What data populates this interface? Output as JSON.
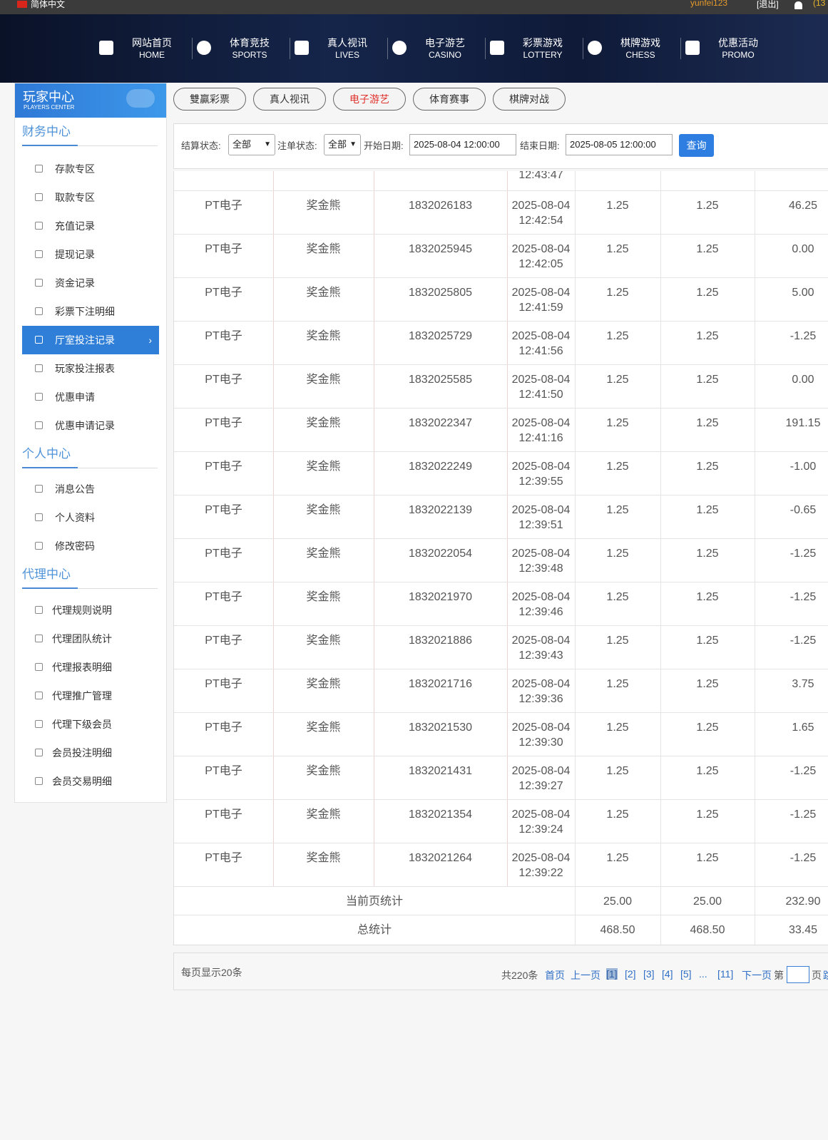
{
  "top_bar": {
    "language": "简体中文",
    "username": "yunfei123",
    "logout": "[退出]",
    "balance_partial": "(13"
  },
  "nav": [
    {
      "zh": "网站首页",
      "en": "HOME"
    },
    {
      "zh": "体育竞技",
      "en": "SPORTS"
    },
    {
      "zh": "真人视讯",
      "en": "LIVES"
    },
    {
      "zh": "电子游艺",
      "en": "CASINO"
    },
    {
      "zh": "彩票游戏",
      "en": "LOTTERY"
    },
    {
      "zh": "棋牌游戏",
      "en": "CHESS"
    },
    {
      "zh": "优惠活动",
      "en": "PROMO"
    }
  ],
  "sidebar": {
    "title": "玩家中心",
    "subtitle": "PLAYERS CENTER",
    "sections": [
      {
        "heading": "财务中心",
        "items": [
          {
            "label": "存款专区"
          },
          {
            "label": "取款专区"
          },
          {
            "label": "充值记录"
          },
          {
            "label": "提现记录"
          },
          {
            "label": "资金记录"
          },
          {
            "label": "彩票下注明细"
          },
          {
            "label": "厅室投注记录",
            "active": true
          },
          {
            "label": "玩家投注报表"
          },
          {
            "label": "优惠申请"
          },
          {
            "label": "优惠申请记录"
          }
        ]
      },
      {
        "heading": "个人中心",
        "items": [
          {
            "label": "消息公告"
          },
          {
            "label": "个人资料"
          },
          {
            "label": "修改密码"
          }
        ]
      },
      {
        "heading": "代理中心",
        "items": [
          {
            "label": "代理规则说明"
          },
          {
            "label": "代理团队统计"
          },
          {
            "label": "代理报表明细"
          },
          {
            "label": "代理推广管理"
          },
          {
            "label": "代理下级会员"
          },
          {
            "label": "会员投注明细"
          },
          {
            "label": "会员交易明细"
          }
        ]
      }
    ]
  },
  "tabs": [
    {
      "label": "雙贏彩票"
    },
    {
      "label": "真人视讯"
    },
    {
      "label": "电子游艺",
      "active": true
    },
    {
      "label": "体育赛事"
    },
    {
      "label": "棋牌对战"
    }
  ],
  "filter": {
    "settle_label": "结算状态:",
    "settle_value": "全部",
    "order_label": "注单状态:",
    "order_value": "全部",
    "start_label": "开始日期:",
    "start_value": "2025-08-04 12:00:00",
    "end_label": "结束日期:",
    "end_value": "2025-08-05 12:00:00",
    "button": "查询"
  },
  "table": {
    "partial_row": {
      "time": "12:43:47"
    },
    "rows": [
      [
        "PT电子",
        "奖金熊",
        "1832026183",
        "2025-08-04",
        "12:42:54",
        "1.25",
        "1.25",
        "46.25"
      ],
      [
        "PT电子",
        "奖金熊",
        "1832025945",
        "2025-08-04",
        "12:42:05",
        "1.25",
        "1.25",
        "0.00"
      ],
      [
        "PT电子",
        "奖金熊",
        "1832025805",
        "2025-08-04",
        "12:41:59",
        "1.25",
        "1.25",
        "5.00"
      ],
      [
        "PT电子",
        "奖金熊",
        "1832025729",
        "2025-08-04",
        "12:41:56",
        "1.25",
        "1.25",
        "-1.25"
      ],
      [
        "PT电子",
        "奖金熊",
        "1832025585",
        "2025-08-04",
        "12:41:50",
        "1.25",
        "1.25",
        "0.00"
      ],
      [
        "PT电子",
        "奖金熊",
        "1832022347",
        "2025-08-04",
        "12:41:16",
        "1.25",
        "1.25",
        "191.15"
      ],
      [
        "PT电子",
        "奖金熊",
        "1832022249",
        "2025-08-04",
        "12:39:55",
        "1.25",
        "1.25",
        "-1.00"
      ],
      [
        "PT电子",
        "奖金熊",
        "1832022139",
        "2025-08-04",
        "12:39:51",
        "1.25",
        "1.25",
        "-0.65"
      ],
      [
        "PT电子",
        "奖金熊",
        "1832022054",
        "2025-08-04",
        "12:39:48",
        "1.25",
        "1.25",
        "-1.25"
      ],
      [
        "PT电子",
        "奖金熊",
        "1832021970",
        "2025-08-04",
        "12:39:46",
        "1.25",
        "1.25",
        "-1.25"
      ],
      [
        "PT电子",
        "奖金熊",
        "1832021886",
        "2025-08-04",
        "12:39:43",
        "1.25",
        "1.25",
        "-1.25"
      ],
      [
        "PT电子",
        "奖金熊",
        "1832021716",
        "2025-08-04",
        "12:39:36",
        "1.25",
        "1.25",
        "3.75"
      ],
      [
        "PT电子",
        "奖金熊",
        "1832021530",
        "2025-08-04",
        "12:39:30",
        "1.25",
        "1.25",
        "1.65"
      ],
      [
        "PT电子",
        "奖金熊",
        "1832021431",
        "2025-08-04",
        "12:39:27",
        "1.25",
        "1.25",
        "-1.25"
      ],
      [
        "PT电子",
        "奖金熊",
        "1832021354",
        "2025-08-04",
        "12:39:24",
        "1.25",
        "1.25",
        "-1.25"
      ],
      [
        "PT电子",
        "奖金熊",
        "1832021264",
        "2025-08-04",
        "12:39:22",
        "1.25",
        "1.25",
        "-1.25"
      ]
    ],
    "summary": [
      {
        "label": "当前页统计",
        "values": [
          "25.00",
          "25.00",
          "232.90"
        ]
      },
      {
        "label": "总统计",
        "values": [
          "468.50",
          "468.50",
          "33.45"
        ]
      }
    ]
  },
  "pagination": {
    "per_page": "每页显示20条",
    "total": "共220条",
    "first": "首页",
    "prev": "上一页",
    "pages": [
      {
        "label": "[1]",
        "active": true
      },
      {
        "label": "[2]"
      },
      {
        "label": "[3]"
      },
      {
        "label": "[4]"
      },
      {
        "label": "[5]"
      },
      {
        "label": "..."
      },
      {
        "label": "[11]"
      }
    ],
    "next": "下一页",
    "goto_prefix": "第",
    "goto_suffix": "页",
    "jump_partial": "跳"
  }
}
